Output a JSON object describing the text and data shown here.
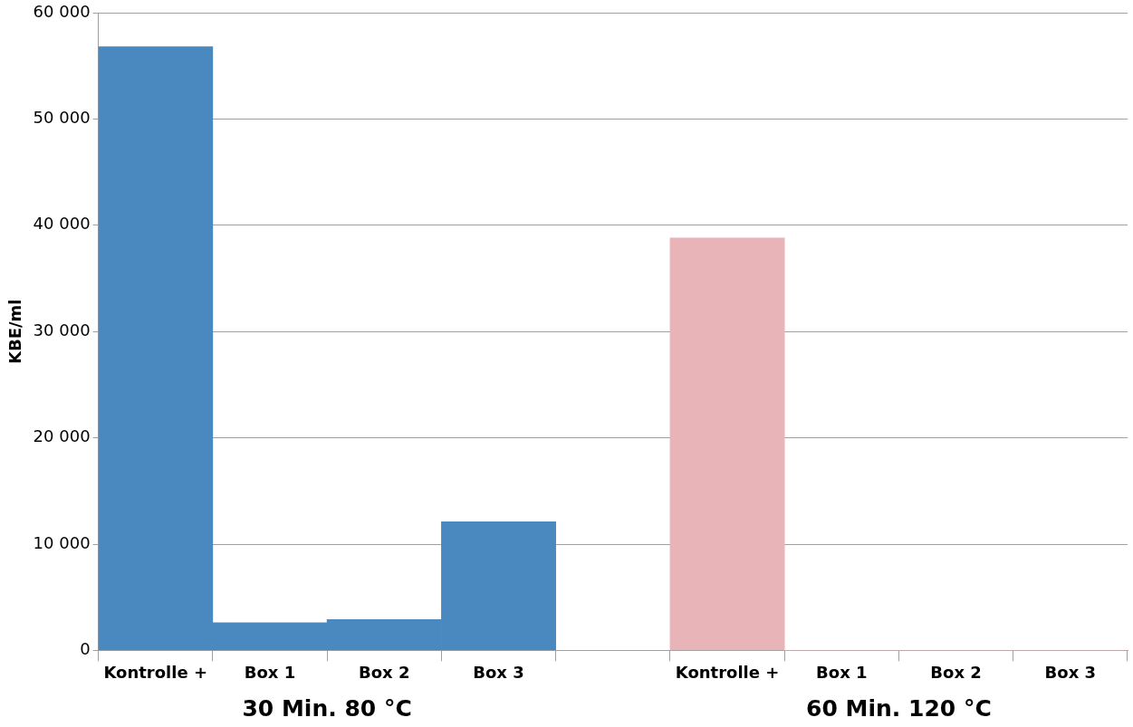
{
  "chart_data": {
    "type": "bar",
    "ylabel": "KBE/ml",
    "categories": [
      "Kontrolle +",
      "Box 1",
      "Box 2",
      "Box 3",
      null,
      "Kontrolle +",
      "Box 1",
      "Box 2",
      "Box 3"
    ],
    "values": [
      56800,
      2600,
      2900,
      12100,
      null,
      38800,
      0,
      0,
      0
    ],
    "colors": [
      "#4a89bf",
      "#4a89bf",
      "#4a89bf",
      "#4a89bf",
      "#4a89bf",
      "#e8b4b8",
      "#e8b4b8",
      "#e8b4b8",
      "#e8b4b8"
    ],
    "ylim": [
      0,
      60000
    ],
    "yticks": [
      0,
      {
        "value": 10000,
        "label": "10 000"
      },
      {
        "value": 20000,
        "label": "20 000"
      },
      {
        "value": 30000,
        "label": "30 000"
      },
      {
        "value": 40000,
        "label": "40 000"
      },
      {
        "value": 50000,
        "label": "50 000"
      },
      {
        "value": 60000,
        "label": "60 000"
      }
    ],
    "grid": "y",
    "legend": false,
    "annotations": [
      "30 Min. 80 °C",
      "60 Min. 120 °C"
    ]
  }
}
